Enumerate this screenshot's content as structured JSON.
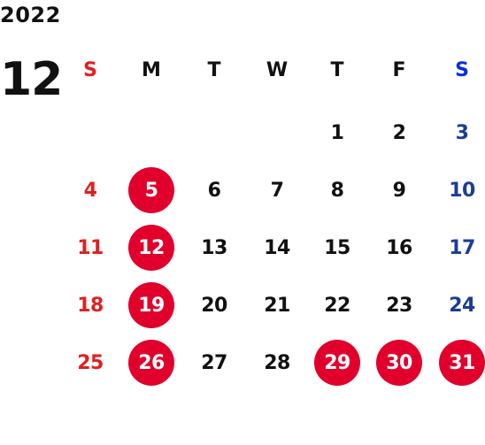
{
  "calendar": {
    "year": "2022",
    "month": "12",
    "weekdays": [
      "S",
      "M",
      "T",
      "W",
      "T",
      "F",
      "S"
    ],
    "colors": {
      "sunday": "#e0201f",
      "saturday": "#1a3d99",
      "saturday_header": "#0a2ee0",
      "weekday": "#111111",
      "holiday_fill": "#e0002b",
      "holiday_text": "#ffffff"
    },
    "weeks": [
      [
        "",
        "",
        "",
        "",
        "1",
        "2",
        "3"
      ],
      [
        "4",
        "5",
        "6",
        "7",
        "8",
        "9",
        "10"
      ],
      [
        "11",
        "12",
        "13",
        "14",
        "15",
        "16",
        "17"
      ],
      [
        "18",
        "19",
        "20",
        "21",
        "22",
        "23",
        "24"
      ],
      [
        "25",
        "26",
        "27",
        "28",
        "29",
        "30",
        "31"
      ]
    ],
    "holidays": [
      "5",
      "12",
      "19",
      "26",
      "29",
      "30",
      "31"
    ]
  }
}
